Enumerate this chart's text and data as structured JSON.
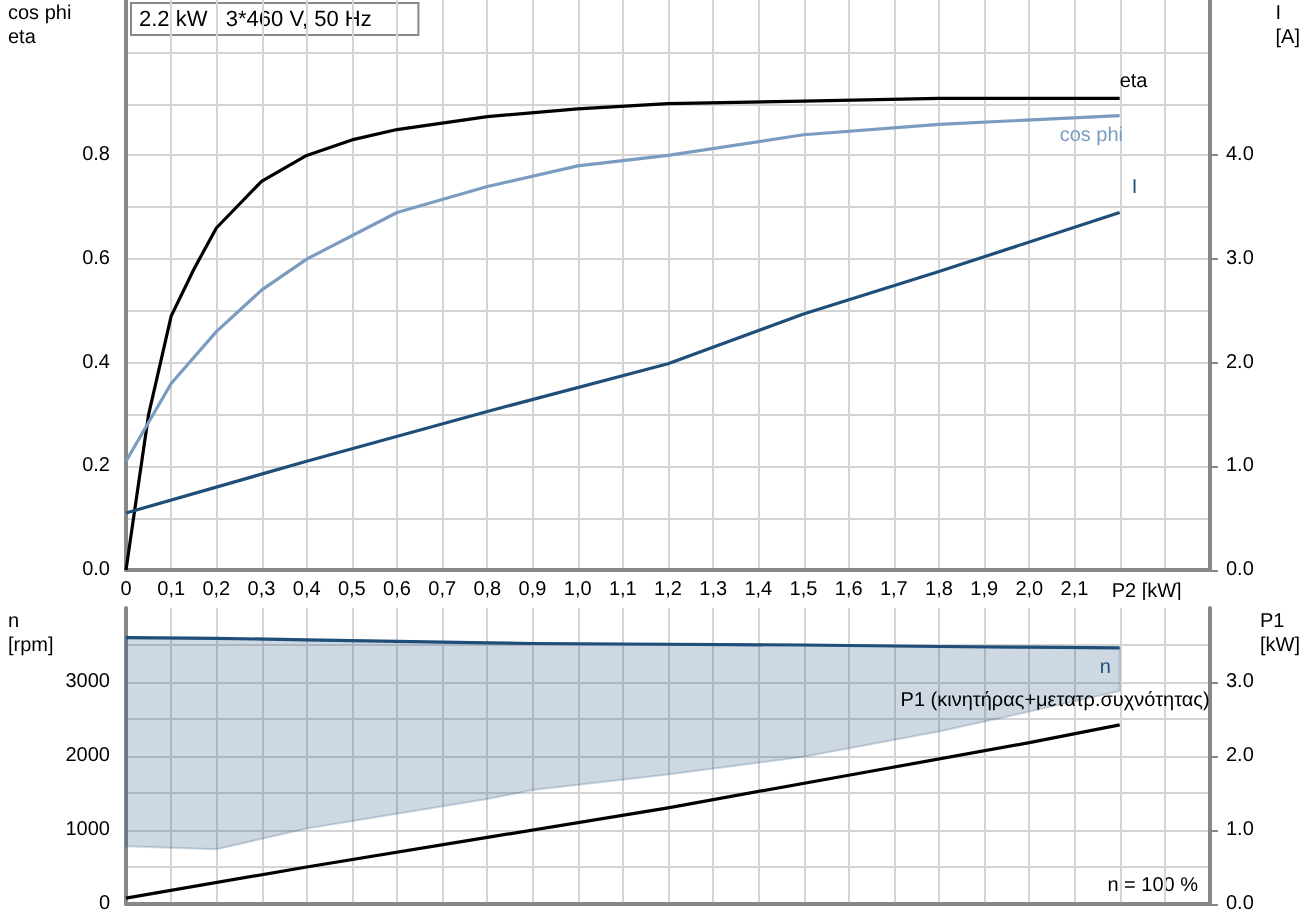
{
  "chart_data": [
    {
      "type": "line",
      "title": "2.2 kW   3*460 V, 50 Hz",
      "xlabel": "P2 [kW]",
      "ylabel": "cos phi\neta",
      "y2label": "I\n[A]",
      "xlim": [
        0,
        2.4
      ],
      "xticks": [
        {
          "value": 0,
          "label": "0"
        },
        {
          "value": 0.1,
          "label": "0,1"
        },
        {
          "value": 0.2,
          "label": "0,2"
        },
        {
          "value": 0.3,
          "label": "0,3"
        },
        {
          "value": 0.4,
          "label": "0,4"
        },
        {
          "value": 0.5,
          "label": "0,5"
        },
        {
          "value": 0.6,
          "label": "0,6"
        },
        {
          "value": 0.7,
          "label": "0,7"
        },
        {
          "value": 0.8,
          "label": "0,8"
        },
        {
          "value": 0.9,
          "label": "0,9"
        },
        {
          "value": 1.0,
          "label": "1,0"
        },
        {
          "value": 1.1,
          "label": "1,1"
        },
        {
          "value": 1.2,
          "label": "1,2"
        },
        {
          "value": 1.3,
          "label": "1,3"
        },
        {
          "value": 1.4,
          "label": "1,4"
        },
        {
          "value": 1.5,
          "label": "1,5"
        },
        {
          "value": 1.6,
          "label": "1,6"
        },
        {
          "value": 1.7,
          "label": "1,7"
        },
        {
          "value": 1.8,
          "label": "1,8"
        },
        {
          "value": 1.9,
          "label": "1,9"
        },
        {
          "value": 2.0,
          "label": "2,0"
        },
        {
          "value": 2.1,
          "label": "2,1"
        },
        {
          "value": 2.2,
          "label": null
        },
        {
          "value": 2.3,
          "label": null
        }
      ],
      "ylim": [
        0,
        1.1
      ],
      "yticks": [
        {
          "value": 0,
          "label": "0.0"
        },
        {
          "value": 0.1,
          "label": null
        },
        {
          "value": 0.2,
          "label": "0.2"
        },
        {
          "value": 0.3,
          "label": null
        },
        {
          "value": 0.4,
          "label": "0.4"
        },
        {
          "value": 0.5,
          "label": null
        },
        {
          "value": 0.6,
          "label": "0.6"
        },
        {
          "value": 0.7,
          "label": null
        },
        {
          "value": 0.8,
          "label": "0.8"
        },
        {
          "value": 0.9,
          "label": null
        },
        {
          "value": 1.0,
          "label": null
        }
      ],
      "y2lim": [
        0,
        5.5
      ],
      "y2ticks": [
        {
          "value": 0,
          "label": "0.0"
        },
        {
          "value": 1,
          "label": "1.0"
        },
        {
          "value": 2,
          "label": "2.0"
        },
        {
          "value": 3,
          "label": "3.0"
        },
        {
          "value": 4,
          "label": "4.0"
        }
      ],
      "grid": true,
      "marker": "none",
      "series": [
        {
          "name": "eta",
          "color": "#000000",
          "x": [
            0,
            0.02,
            0.05,
            0.1,
            0.15,
            0.2,
            0.3,
            0.4,
            0.5,
            0.6,
            0.8,
            1.0,
            1.2,
            1.5,
            1.8,
            2.2
          ],
          "values": [
            0,
            0.12,
            0.3,
            0.49,
            0.58,
            0.66,
            0.75,
            0.8,
            0.83,
            0.85,
            0.875,
            0.89,
            0.9,
            0.905,
            0.91,
            0.91
          ]
        },
        {
          "name": "cos phi",
          "color": "#7a9cc0",
          "x": [
            0,
            0.1,
            0.2,
            0.3,
            0.4,
            0.6,
            0.8,
            1.0,
            1.2,
            1.5,
            1.8,
            2.2
          ],
          "values": [
            0.21,
            0.36,
            0.46,
            0.54,
            0.6,
            0.69,
            0.74,
            0.78,
            0.8,
            0.84,
            0.86,
            0.877
          ]
        },
        {
          "name": "I",
          "color": "#1f4e79",
          "axis": "y2",
          "x": [
            0,
            0.4,
            0.8,
            1.2,
            1.5,
            1.8,
            2.2
          ],
          "values": [
            0.55,
            1.05,
            1.53,
            1.99,
            2.47,
            2.88,
            3.45
          ]
        }
      ]
    },
    {
      "type": "line",
      "ylabel": "n\n[rpm]",
      "y2label": "P1\n[kW]",
      "xlim": [
        0,
        2.4
      ],
      "tick_labels": "y",
      "xticks": [
        0,
        0.1,
        0.2,
        0.3,
        0.4,
        0.5,
        0.6,
        0.7,
        0.8,
        0.9,
        1.0,
        1.1,
        1.2,
        1.3,
        1.4,
        1.5,
        1.6,
        1.7,
        1.8,
        1.9,
        2.0,
        2.1,
        2.2,
        2.3
      ],
      "ylim": [
        0,
        4000
      ],
      "yticks": [
        0,
        {
          "value": 500,
          "label": null
        },
        1000,
        {
          "value": 1500,
          "label": null
        },
        2000,
        {
          "value": 2500,
          "label": null
        },
        3000,
        {
          "value": 3500,
          "label": null
        }
      ],
      "y2lim": [
        0,
        4
      ],
      "y2ticks": [
        {
          "value": 0,
          "label": "0.0"
        },
        {
          "value": 1,
          "label": "1.0"
        },
        {
          "value": 2,
          "label": "2.0"
        },
        {
          "value": 3,
          "label": "3.0"
        }
      ],
      "grid": true,
      "marker": "none",
      "annotations": [
        "n = 100 %"
      ],
      "series": [
        {
          "name": "n",
          "color": "#1f4e79",
          "x": [
            0,
            0.2,
            0.4,
            0.6,
            0.8,
            0.9,
            1.2,
            1.5,
            1.8,
            2.0,
            2.2
          ],
          "values": [
            3600,
            3590,
            3570,
            3550,
            3530,
            3520,
            3510,
            3500,
            3480,
            3470,
            3460
          ],
          "lower": [
            780,
            740,
            1020,
            1220,
            1420,
            1540,
            1750,
            1990,
            2330,
            2600,
            2880
          ],
          "upper": [
            3600,
            3590,
            3570,
            3550,
            3530,
            3520,
            3510,
            3500,
            3480,
            3470,
            3460
          ]
        },
        {
          "name": "P1 (κινητήρας+μετατρ.συχνότητας)",
          "color": "#000000",
          "axis": "y2",
          "x": [
            0,
            0.4,
            0.8,
            1.2,
            1.6,
            2.0,
            2.2
          ],
          "values": [
            0.08,
            0.5,
            0.9,
            1.3,
            1.74,
            2.18,
            2.42
          ]
        }
      ]
    }
  ]
}
